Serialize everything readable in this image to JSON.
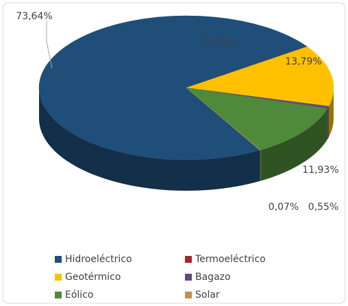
{
  "chart_data": {
    "type": "pie",
    "categories": [
      "Hidroeléctrico",
      "Termoeléctrico",
      "Geotérmico",
      "Bagazo",
      "Eólico",
      "Solar"
    ],
    "values": [
      73.64,
      0.02,
      13.79,
      0.55,
      11.93,
      0.07
    ],
    "value_labels": [
      "73,64%",
      "0,02%",
      "13,79%",
      "0,55%",
      "11,93%",
      "0,07%"
    ],
    "colors": [
      "#1f4e79",
      "#a5282c",
      "#ffc000",
      "#604a7b",
      "#4e8a3a",
      "#c0904d"
    ],
    "legend": "bottom"
  }
}
